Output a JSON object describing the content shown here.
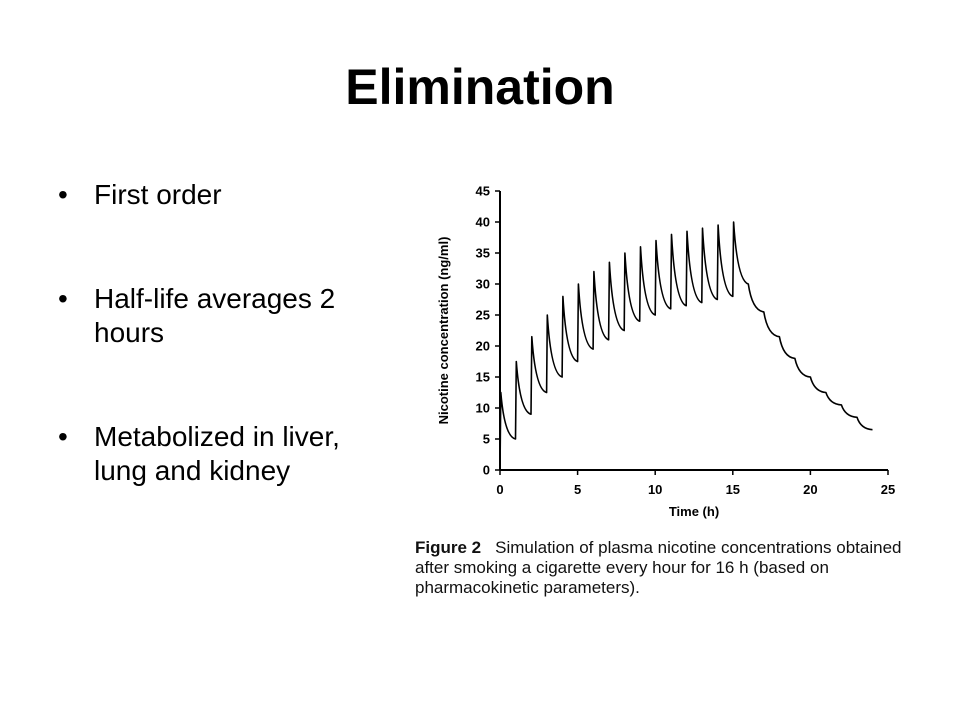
{
  "slide": {
    "title": "Elimination",
    "bullets": [
      "First order",
      "Half-life averages 2 hours",
      "Metabolized in liver, lung and kidney"
    ]
  },
  "figure": {
    "label": "Figure 2",
    "caption": "Simulation of plasma nicotine concentrations obtained after smoking a cigarette every hour for 16 h (based on pharmacokinetic parameters)."
  },
  "chart_data": {
    "type": "line",
    "xlabel": "Time (h)",
    "ylabel": "Nicotine concentration (ng/ml)",
    "xlim": [
      0,
      25
    ],
    "ylim": [
      0,
      45
    ],
    "xticks": [
      0,
      5,
      10,
      15,
      20,
      25
    ],
    "yticks": [
      0,
      5,
      10,
      15,
      20,
      25,
      30,
      35,
      40,
      45
    ],
    "grid": false,
    "series": [
      {
        "x": [
          0,
          0.05,
          1,
          1.05,
          2,
          2.05,
          3,
          3.05,
          4,
          4.05,
          5,
          5.05,
          6,
          6.05,
          7,
          7.05,
          8,
          8.05,
          9,
          9.05,
          10,
          10.05,
          11,
          11.05,
          12,
          12.05,
          13,
          13.05,
          14,
          14.05,
          15,
          15.05,
          16,
          17,
          18,
          19,
          20,
          21,
          22,
          23,
          24
        ],
        "y": [
          0,
          12.5,
          5,
          17.5,
          9,
          21.5,
          12.5,
          25,
          15,
          28,
          17.5,
          30,
          19.5,
          32,
          21,
          33.5,
          22.5,
          35,
          24,
          36,
          25,
          37,
          26,
          38,
          26.5,
          38.5,
          27,
          39,
          27.5,
          39.5,
          28,
          40,
          30,
          25.5,
          21.5,
          18,
          15,
          12.5,
          10.5,
          8.5,
          6.5
        ]
      }
    ]
  }
}
